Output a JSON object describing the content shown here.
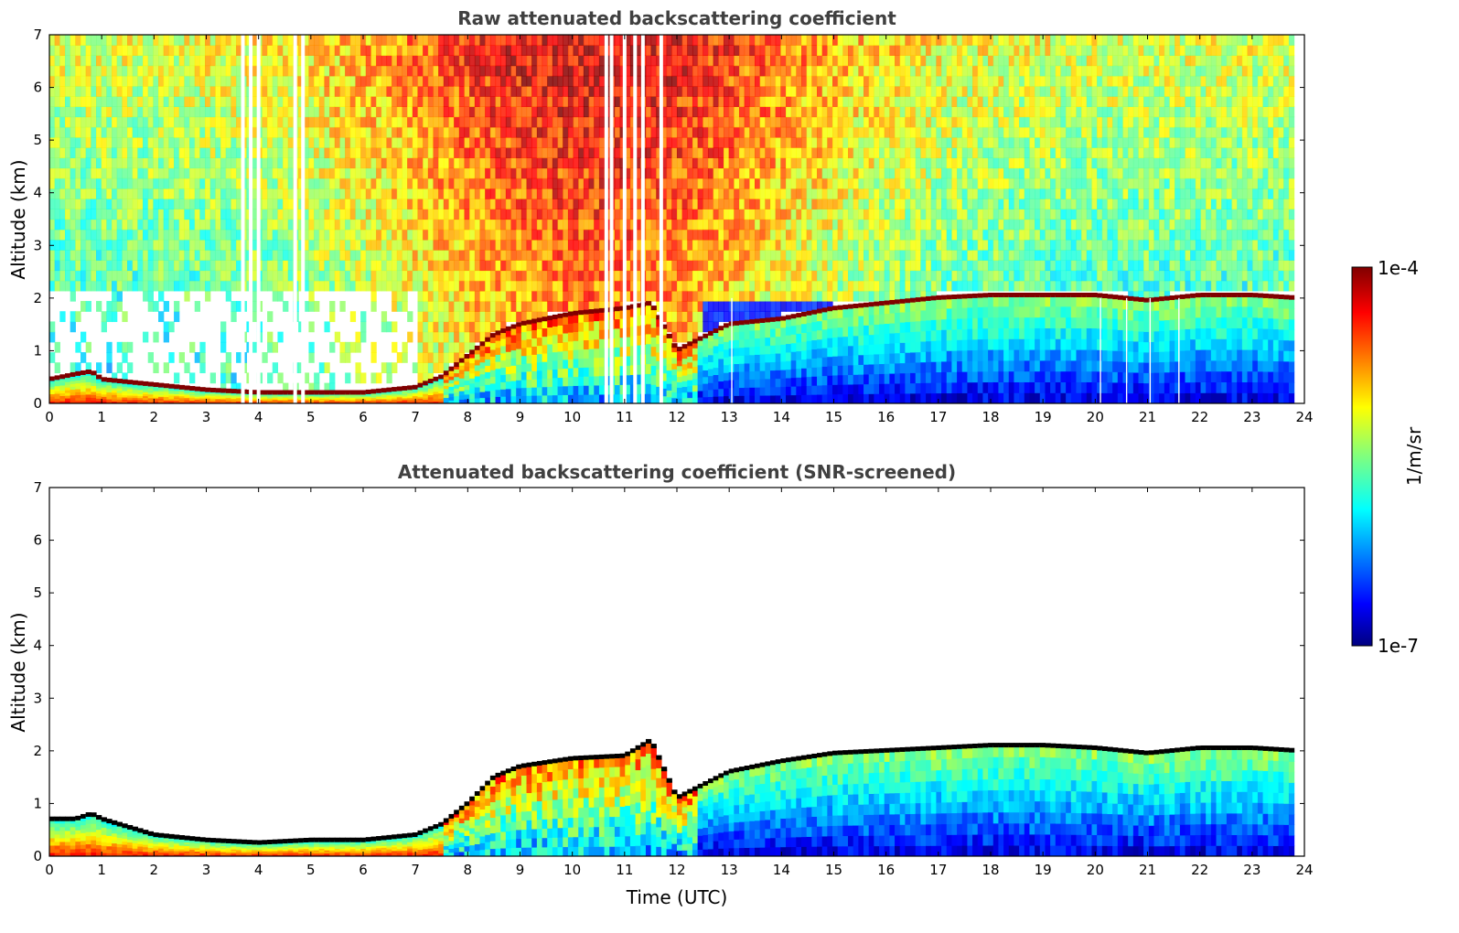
{
  "chart_data": [
    {
      "type": "heatmap",
      "title": "Raw attenuated backscattering coefficient",
      "xlabel": "",
      "ylabel": "Altitude (km)",
      "xlim": [
        0,
        24
      ],
      "ylim": [
        0,
        7
      ],
      "xticks": [
        "0",
        "1",
        "2",
        "3",
        "4",
        "5",
        "6",
        "7",
        "8",
        "9",
        "10",
        "11",
        "12",
        "13",
        "14",
        "15",
        "16",
        "17",
        "18",
        "19",
        "20",
        "21",
        "22",
        "23",
        "24"
      ],
      "yticks": [
        "0",
        "1",
        "2",
        "3",
        "4",
        "5",
        "6",
        "7"
      ],
      "colorscale": "jet",
      "data_end_hour": 23.8,
      "gap_hours": [
        3.7,
        3.85,
        4.0,
        4.7,
        4.85,
        10.65,
        10.75,
        11.0,
        11.2,
        11.35,
        11.7
      ],
      "thin_gap_hours": [
        13.05,
        20.1,
        20.6,
        21.05,
        21.6
      ],
      "aerosol_layer_top_km": [
        [
          0,
          0.45
        ],
        [
          0.5,
          0.55
        ],
        [
          0.8,
          0.6
        ],
        [
          1.0,
          0.45
        ],
        [
          2.0,
          0.35
        ],
        [
          3.0,
          0.25
        ],
        [
          4.0,
          0.2
        ],
        [
          5.0,
          0.2
        ],
        [
          6.0,
          0.2
        ],
        [
          7.0,
          0.3
        ],
        [
          7.5,
          0.5
        ],
        [
          8.0,
          0.9
        ],
        [
          8.5,
          1.3
        ],
        [
          9.0,
          1.5
        ],
        [
          10.0,
          1.7
        ],
        [
          11.0,
          1.8
        ],
        [
          11.5,
          1.9
        ],
        [
          12.0,
          1.0
        ],
        [
          12.4,
          1.2
        ],
        [
          13.0,
          1.5
        ],
        [
          14.0,
          1.6
        ],
        [
          15.0,
          1.8
        ],
        [
          16.0,
          1.9
        ],
        [
          17.0,
          2.0
        ],
        [
          18.0,
          2.05
        ],
        [
          19.0,
          2.05
        ],
        [
          20.0,
          2.05
        ],
        [
          21.0,
          1.95
        ],
        [
          22.0,
          2.05
        ],
        [
          23.0,
          2.05
        ],
        [
          23.8,
          2.0
        ]
      ]
    },
    {
      "type": "heatmap",
      "title": "Attenuated backscattering coefficient (SNR-screened)",
      "xlabel": "Time (UTC)",
      "ylabel": "Altitude (km)",
      "xlim": [
        0,
        24
      ],
      "ylim": [
        0,
        7
      ],
      "xticks": [
        "0",
        "1",
        "2",
        "3",
        "4",
        "5",
        "6",
        "7",
        "8",
        "9",
        "10",
        "11",
        "12",
        "13",
        "14",
        "15",
        "16",
        "17",
        "18",
        "19",
        "20",
        "21",
        "22",
        "23",
        "24"
      ],
      "yticks": [
        "0",
        "1",
        "2",
        "3",
        "4",
        "5",
        "6",
        "7"
      ],
      "colorscale": "jet",
      "data_end_hour": 23.8,
      "aerosol_layer_top_km": [
        [
          0,
          0.7
        ],
        [
          0.5,
          0.7
        ],
        [
          0.8,
          0.8
        ],
        [
          1.0,
          0.7
        ],
        [
          2.0,
          0.4
        ],
        [
          3.0,
          0.3
        ],
        [
          4.0,
          0.25
        ],
        [
          5.0,
          0.3
        ],
        [
          6.0,
          0.3
        ],
        [
          7.0,
          0.4
        ],
        [
          7.5,
          0.6
        ],
        [
          8.0,
          1.0
        ],
        [
          8.5,
          1.5
        ],
        [
          9.0,
          1.7
        ],
        [
          10.0,
          1.85
        ],
        [
          11.0,
          1.9
        ],
        [
          11.5,
          2.2
        ],
        [
          12.0,
          1.1
        ],
        [
          12.4,
          1.3
        ],
        [
          13.0,
          1.6
        ],
        [
          14.0,
          1.8
        ],
        [
          15.0,
          1.95
        ],
        [
          16.0,
          2.0
        ],
        [
          17.0,
          2.05
        ],
        [
          18.0,
          2.1
        ],
        [
          19.0,
          2.1
        ],
        [
          20.0,
          2.05
        ],
        [
          21.0,
          1.95
        ],
        [
          22.0,
          2.05
        ],
        [
          23.0,
          2.05
        ],
        [
          23.8,
          2.0
        ]
      ]
    }
  ],
  "colorbar": {
    "label": "1/m/sr",
    "max_label": "1e-4",
    "min_label": "1e-7",
    "log_range": [
      -7,
      -4
    ]
  },
  "colors": {
    "title_text": "#404040",
    "axes": "#000000",
    "background": "#ffffff"
  }
}
